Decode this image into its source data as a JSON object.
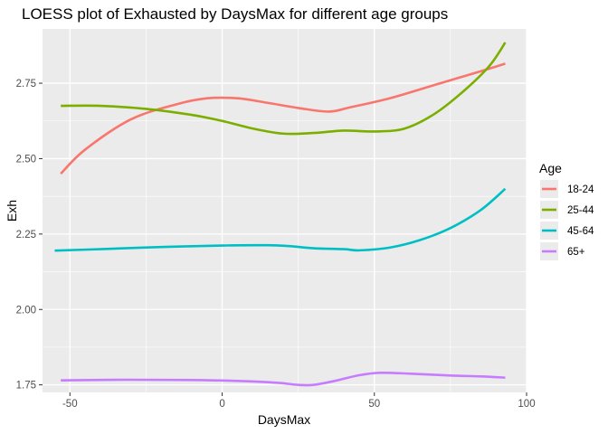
{
  "chart_data": {
    "type": "line",
    "title": "LOESS plot of Exhausted by DaysMax for different age groups",
    "xlabel": "DaysMax",
    "ylabel": "Exh",
    "xlim": [
      -59,
      100
    ],
    "ylim": [
      1.725,
      2.93
    ],
    "x_ticks": [
      -50,
      0,
      50,
      100
    ],
    "x_tick_labels": [
      "-50",
      "0",
      "50",
      "100"
    ],
    "y_ticks": [
      1.75,
      2.0,
      2.25,
      2.5,
      2.75
    ],
    "y_tick_labels": [
      "1.75",
      "2.00",
      "2.25",
      "2.50",
      "2.75"
    ],
    "grid": true,
    "legend": {
      "title": "Age",
      "position": "right"
    },
    "series": [
      {
        "name": "18-24",
        "color": "#F8766D",
        "points": [
          [
            -53,
            2.45
          ],
          [
            -45,
            2.53
          ],
          [
            -30,
            2.63
          ],
          [
            -15,
            2.68
          ],
          [
            -5,
            2.7
          ],
          [
            5,
            2.7
          ],
          [
            15,
            2.685
          ],
          [
            25,
            2.668
          ],
          [
            35,
            2.656
          ],
          [
            42,
            2.67
          ],
          [
            55,
            2.7
          ],
          [
            70,
            2.745
          ],
          [
            85,
            2.79
          ],
          [
            93,
            2.815
          ]
        ]
      },
      {
        "name": "25-44",
        "color": "#7CAE00",
        "points": [
          [
            -53,
            2.675
          ],
          [
            -40,
            2.675
          ],
          [
            -25,
            2.665
          ],
          [
            -10,
            2.645
          ],
          [
            0,
            2.625
          ],
          [
            10,
            2.6
          ],
          [
            20,
            2.583
          ],
          [
            30,
            2.585
          ],
          [
            40,
            2.593
          ],
          [
            50,
            2.59
          ],
          [
            60,
            2.6
          ],
          [
            70,
            2.65
          ],
          [
            80,
            2.73
          ],
          [
            88,
            2.81
          ],
          [
            93,
            2.885
          ]
        ]
      },
      {
        "name": "45-64",
        "color": "#00BFC4",
        "points": [
          [
            -55,
            2.195
          ],
          [
            -40,
            2.2
          ],
          [
            -20,
            2.207
          ],
          [
            0,
            2.212
          ],
          [
            15,
            2.213
          ],
          [
            22,
            2.21
          ],
          [
            30,
            2.203
          ],
          [
            40,
            2.2
          ],
          [
            45,
            2.196
          ],
          [
            55,
            2.205
          ],
          [
            65,
            2.23
          ],
          [
            75,
            2.27
          ],
          [
            85,
            2.33
          ],
          [
            93,
            2.4
          ]
        ]
      },
      {
        "name": "65+",
        "color": "#C77CFF",
        "points": [
          [
            -53,
            1.765
          ],
          [
            -30,
            1.767
          ],
          [
            -10,
            1.766
          ],
          [
            5,
            1.763
          ],
          [
            18,
            1.757
          ],
          [
            25,
            1.75
          ],
          [
            30,
            1.75
          ],
          [
            37,
            1.763
          ],
          [
            45,
            1.782
          ],
          [
            52,
            1.79
          ],
          [
            62,
            1.787
          ],
          [
            75,
            1.781
          ],
          [
            85,
            1.778
          ],
          [
            93,
            1.774
          ]
        ]
      }
    ]
  }
}
